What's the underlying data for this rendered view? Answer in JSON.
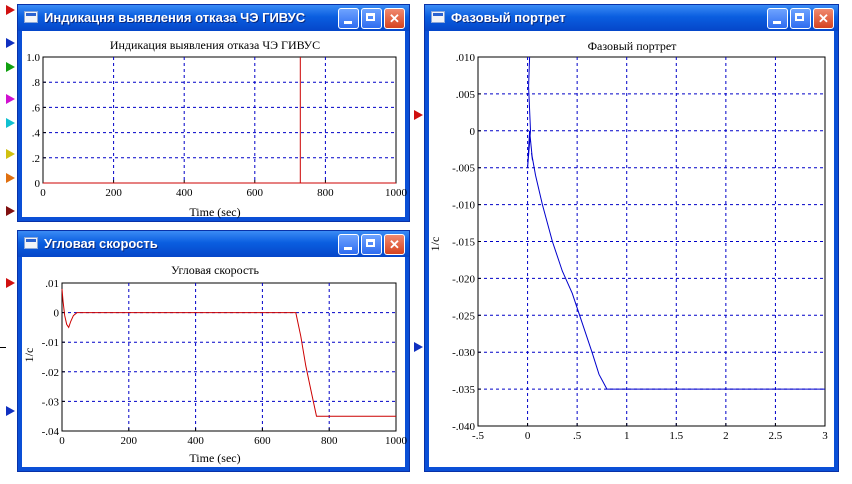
{
  "ports": {
    "left": [
      {
        "color": "#d01010"
      },
      {
        "color": "#1030c0"
      },
      {
        "color": "#10a010"
      },
      {
        "color": "#d010d0"
      },
      {
        "color": "#10c0d0"
      },
      {
        "color": "#d0c010"
      },
      {
        "color": "#e07010"
      },
      {
        "color": "#801010"
      },
      {
        "color": "#d01010"
      },
      {
        "color": "#1030c0"
      }
    ],
    "middle": [
      {
        "color": "#d01010"
      },
      {
        "color": "#1030c0"
      }
    ]
  },
  "windows": {
    "indication": {
      "title": "Индикацня выявления отказа ЧЭ ГИВУС",
      "chart_title": "Индикация выявления отказа ЧЭ ГИВУС",
      "xlabel": "Time (sec)",
      "ylabel": "",
      "xticks": [
        "0",
        "200",
        "400",
        "600",
        "800",
        "1000"
      ],
      "yticks": [
        "0",
        ".2",
        ".4",
        ".6",
        ".8",
        "1.0"
      ]
    },
    "angular": {
      "title": "Угловая скорость",
      "chart_title": "Угловая скорость",
      "xlabel": "Time (sec)",
      "ylabel": "1/c",
      "xticks": [
        "0",
        "200",
        "400",
        "600",
        "800",
        "1000"
      ],
      "yticks": [
        "-.04",
        "-.03",
        "-.02",
        "-.01",
        "0",
        ".01"
      ]
    },
    "phase": {
      "title": "Фазовый портрет",
      "chart_title": "Фазовый портрет",
      "xlabel": "",
      "ylabel": "1/c",
      "xticks": [
        "-.5",
        "0",
        ".5",
        "1",
        "1.5",
        "2",
        "2.5",
        "3"
      ],
      "yticks": [
        "-.040",
        "-.035",
        "-.030",
        "-.025",
        "-.020",
        "-.015",
        "-.010",
        "-.005",
        "0",
        ".005",
        ".010"
      ]
    }
  },
  "chart_data": [
    {
      "type": "line",
      "title": "Индикация выявления отказа ЧЭ ГИВУС",
      "xlabel": "Time (sec)",
      "xlim": [
        0,
        1000
      ],
      "ylim": [
        0,
        1.0
      ],
      "grid": true,
      "series": [
        {
          "color": "#cc0000",
          "x": [
            0,
            729,
            729,
            729,
            1000
          ],
          "y": [
            0,
            0,
            1.0,
            0,
            0
          ]
        }
      ]
    },
    {
      "type": "line",
      "title": "Угловая скорость",
      "xlabel": "Time (sec)",
      "ylabel": "1/c",
      "xlim": [
        0,
        1000
      ],
      "ylim": [
        -0.04,
        0.01
      ],
      "grid": true,
      "series": [
        {
          "color": "#cc0000",
          "x": [
            0,
            3,
            8,
            14,
            20,
            26,
            34,
            45,
            700,
            715,
            730,
            745,
            762,
            1000
          ],
          "y": [
            0.008,
            0.004,
            -0.001,
            -0.004,
            -0.005,
            -0.003,
            -0.001,
            0,
            0,
            -0.008,
            -0.018,
            -0.026,
            -0.035,
            -0.035
          ]
        }
      ]
    },
    {
      "type": "line",
      "title": "Фазовый портрет",
      "ylabel": "1/c",
      "xlim": [
        -0.5,
        3
      ],
      "ylim": [
        -0.04,
        0.01
      ],
      "grid": true,
      "series": [
        {
          "color": "#0000cc",
          "x": [
            0.02,
            0.01,
            0.03,
            0.0,
            0.02,
            0.05,
            0.04,
            0.08,
            0.15,
            0.25,
            0.35,
            0.45,
            0.55,
            0.65,
            0.72,
            0.8,
            1.0,
            1.5,
            2.0,
            2.5,
            3.0
          ],
          "y": [
            0.01,
            0.006,
            0.0,
            -0.005,
            0.0,
            -0.004,
            -0.003,
            -0.006,
            -0.01,
            -0.015,
            -0.019,
            -0.022,
            -0.026,
            -0.03,
            -0.033,
            -0.035,
            -0.035,
            -0.035,
            -0.035,
            -0.035,
            -0.035
          ]
        }
      ]
    }
  ]
}
